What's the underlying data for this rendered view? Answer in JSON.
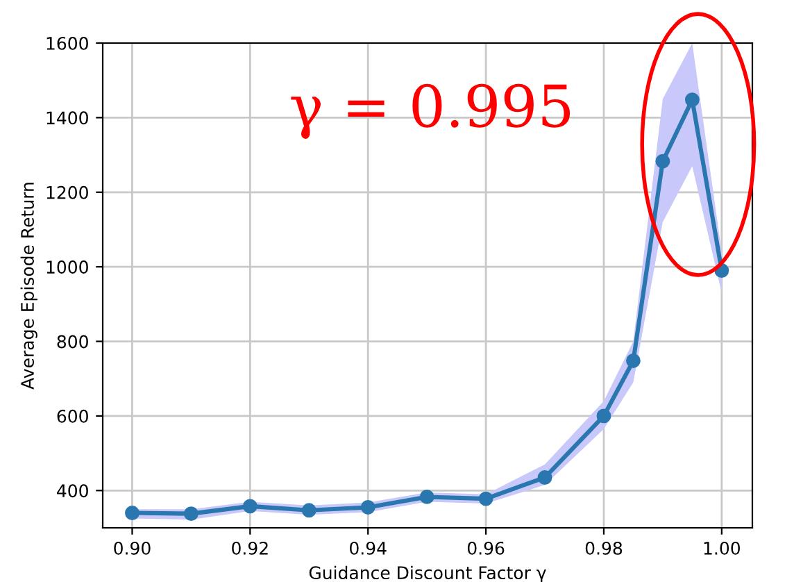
{
  "chart_data": {
    "type": "line",
    "xlabel": "Guidance Discount Factor γ",
    "ylabel": "Average Episode Return",
    "x": [
      0.9,
      0.91,
      0.92,
      0.93,
      0.94,
      0.95,
      0.96,
      0.97,
      0.98,
      0.985,
      0.99,
      0.995,
      1.0
    ],
    "series": [
      {
        "color": "#2a77b0",
        "values": [
          340,
          338,
          358,
          347,
          355,
          383,
          378,
          435,
          600,
          748,
          1283,
          1448,
          990
        ],
        "lower": [
          325,
          322,
          345,
          335,
          342,
          370,
          365,
          415,
          565,
          690,
          1120,
          1270,
          930
        ],
        "upper": [
          350,
          350,
          370,
          360,
          368,
          395,
          390,
          470,
          640,
          800,
          1450,
          1600,
          1040
        ]
      }
    ],
    "xlim": [
      0.895,
      1.0052
    ],
    "ylim": [
      300,
      1600
    ],
    "xticks": [
      {
        "value": 0.9,
        "label": "0.90"
      },
      {
        "value": 0.92,
        "label": "0.92"
      },
      {
        "value": 0.94,
        "label": "0.94"
      },
      {
        "value": 0.96,
        "label": "0.96"
      },
      {
        "value": 0.98,
        "label": "0.98"
      },
      {
        "value": 1.0,
        "label": "1.00"
      }
    ],
    "yticks": [
      400,
      600,
      800,
      1000,
      1200,
      1400,
      1600
    ],
    "grid": true,
    "marker": "circle",
    "line_style": "solid",
    "annotations": [
      {
        "text": "γ = 0.995",
        "x": 0.995,
        "y": 1448
      }
    ]
  }
}
